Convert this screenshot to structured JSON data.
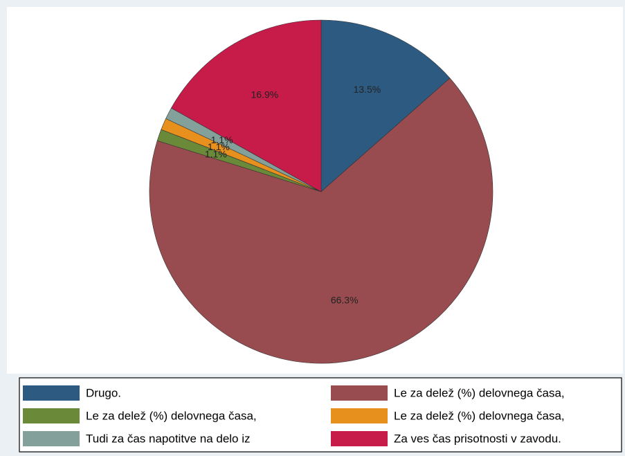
{
  "chart_data": {
    "type": "pie",
    "categories": [
      "Drugo.",
      "Le za delež (%) delovnega časa,",
      "Le za delež (%) delovnega časa,",
      "Le za delež (%) delovnega časa,",
      "Tudi za čas napotitve na delo iz",
      "Za ves čas prisotnosti v zavodu."
    ],
    "values": [
      13.5,
      66.3,
      1.1,
      1.1,
      1.1,
      16.9
    ],
    "value_labels": [
      "13.5%",
      "66.3%",
      "1.1%",
      "1.1%",
      "1.1%",
      "16.9%"
    ],
    "colors": [
      "#2d5a80",
      "#994c4f",
      "#6a8a3a",
      "#e8901d",
      "#84a09a",
      "#c71b4a"
    ]
  }
}
